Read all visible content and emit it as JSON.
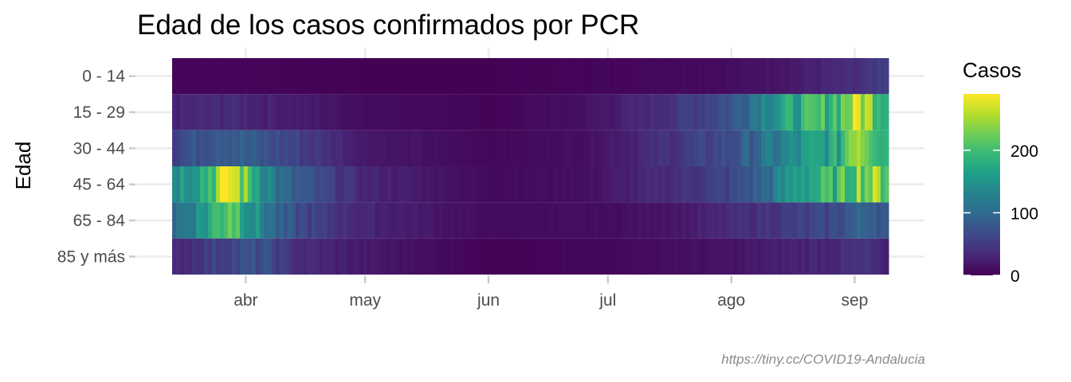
{
  "chart_data": {
    "type": "heatmap",
    "title": "Edad de los casos confirmados por PCR",
    "ylabel": "Edad",
    "xlabel": "",
    "caption": "https://tiny.cc/COVID19-Andalucia",
    "x_range": [
      "2020-03-14",
      "2020-09-09"
    ],
    "x_ticks": [
      {
        "label": "abr",
        "date": "2020-04-01"
      },
      {
        "label": "may",
        "date": "2020-05-01"
      },
      {
        "label": "jun",
        "date": "2020-06-01"
      },
      {
        "label": "jul",
        "date": "2020-07-01"
      },
      {
        "label": "ago",
        "date": "2020-08-01"
      },
      {
        "label": "sep",
        "date": "2020-09-01"
      }
    ],
    "categories": [
      "0 - 14",
      "15 - 29",
      "30 - 44",
      "45 - 64",
      "65 - 84",
      "85 y más"
    ],
    "color_scale": {
      "name": "viridis",
      "legend_title": "Casos",
      "min": 0,
      "max": 290,
      "ticks": [
        0,
        100,
        200
      ],
      "colors": [
        "#440154",
        "#482878",
        "#3e4989",
        "#31688e",
        "#26828e",
        "#1f9e89",
        "#35b779",
        "#6ece58",
        "#b5de2b",
        "#fde725"
      ]
    },
    "series": [
      {
        "name": "0 - 14",
        "keyframes": [
          [
            "2020-03-14",
            4
          ],
          [
            "2020-04-01",
            4
          ],
          [
            "2020-05-01",
            1
          ],
          [
            "2020-06-01",
            1
          ],
          [
            "2020-06-25",
            4
          ],
          [
            "2020-07-15",
            6
          ],
          [
            "2020-08-01",
            10
          ],
          [
            "2020-08-15",
            20
          ],
          [
            "2020-09-01",
            35
          ],
          [
            "2020-09-09",
            50
          ]
        ]
      },
      {
        "name": "15 - 29",
        "keyframes": [
          [
            "2020-03-14",
            30
          ],
          [
            "2020-03-28",
            35
          ],
          [
            "2020-04-10",
            25
          ],
          [
            "2020-05-01",
            10
          ],
          [
            "2020-06-01",
            3
          ],
          [
            "2020-06-25",
            12
          ],
          [
            "2020-07-15",
            40
          ],
          [
            "2020-08-01",
            75
          ],
          [
            "2020-08-10",
            150
          ],
          [
            "2020-08-20",
            180
          ],
          [
            "2020-08-28",
            210
          ],
          [
            "2020-09-02",
            270
          ],
          [
            "2020-09-06",
            230
          ],
          [
            "2020-09-09",
            200
          ]
        ]
      },
      {
        "name": "30 - 44",
        "keyframes": [
          [
            "2020-03-14",
            60
          ],
          [
            "2020-03-26",
            95
          ],
          [
            "2020-04-05",
            75
          ],
          [
            "2020-04-15",
            55
          ],
          [
            "2020-05-01",
            20
          ],
          [
            "2020-06-01",
            5
          ],
          [
            "2020-06-25",
            12
          ],
          [
            "2020-07-15",
            40
          ],
          [
            "2020-08-01",
            70
          ],
          [
            "2020-08-10",
            110
          ],
          [
            "2020-08-20",
            150
          ],
          [
            "2020-08-28",
            170
          ],
          [
            "2020-09-01",
            280
          ],
          [
            "2020-09-05",
            240
          ],
          [
            "2020-09-09",
            190
          ]
        ]
      },
      {
        "name": "45 - 64",
        "keyframes": [
          [
            "2020-03-14",
            150
          ],
          [
            "2020-03-22",
            190
          ],
          [
            "2020-03-28",
            290
          ],
          [
            "2020-04-02",
            200
          ],
          [
            "2020-04-10",
            95
          ],
          [
            "2020-04-20",
            60
          ],
          [
            "2020-05-01",
            30
          ],
          [
            "2020-06-01",
            8
          ],
          [
            "2020-06-25",
            12
          ],
          [
            "2020-07-15",
            35
          ],
          [
            "2020-08-01",
            60
          ],
          [
            "2020-08-10",
            100
          ],
          [
            "2020-08-18",
            170
          ],
          [
            "2020-08-28",
            190
          ],
          [
            "2020-09-02",
            240
          ],
          [
            "2020-09-09",
            230
          ]
        ]
      },
      {
        "name": "65 - 84",
        "keyframes": [
          [
            "2020-03-14",
            100
          ],
          [
            "2020-03-22",
            160
          ],
          [
            "2020-03-28",
            240
          ],
          [
            "2020-04-02",
            160
          ],
          [
            "2020-04-10",
            80
          ],
          [
            "2020-04-20",
            50
          ],
          [
            "2020-05-01",
            30
          ],
          [
            "2020-06-01",
            8
          ],
          [
            "2020-07-01",
            10
          ],
          [
            "2020-07-20",
            20
          ],
          [
            "2020-08-10",
            45
          ],
          [
            "2020-08-25",
            60
          ],
          [
            "2020-09-05",
            100
          ],
          [
            "2020-09-09",
            70
          ]
        ]
      },
      {
        "name": "85 y más",
        "keyframes": [
          [
            "2020-03-14",
            30
          ],
          [
            "2020-03-25",
            60
          ],
          [
            "2020-04-05",
            70
          ],
          [
            "2020-04-15",
            35
          ],
          [
            "2020-05-01",
            20
          ],
          [
            "2020-06-01",
            2
          ],
          [
            "2020-07-01",
            5
          ],
          [
            "2020-08-01",
            15
          ],
          [
            "2020-08-20",
            30
          ],
          [
            "2020-09-05",
            40
          ],
          [
            "2020-09-09",
            20
          ]
        ]
      }
    ]
  }
}
